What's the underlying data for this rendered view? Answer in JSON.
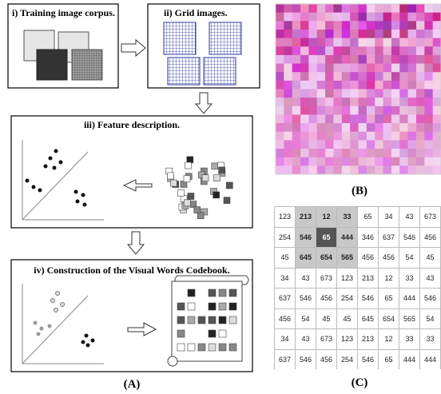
{
  "panels": [
    {
      "title": "i) Training image corpus."
    },
    {
      "title": "ii) Grid images."
    },
    {
      "title": "iii) Feature description."
    },
    {
      "title": "iv) Construction of the Visual Words Codebook."
    }
  ],
  "captions": [
    "(A)",
    "(B)",
    "(C)"
  ],
  "table": {
    "rows": [
      [
        123,
        213,
        12,
        33,
        65,
        34,
        43,
        673
      ],
      [
        254,
        546,
        65,
        444,
        346,
        637,
        546,
        456
      ],
      [
        45,
        645,
        654,
        565,
        456,
        456,
        54,
        45
      ],
      [
        34,
        43,
        673,
        123,
        213,
        12,
        33,
        43
      ],
      [
        637,
        546,
        456,
        254,
        546,
        65,
        444,
        546
      ],
      [
        456,
        54,
        45,
        45,
        645,
        654,
        565,
        54
      ],
      [
        34,
        43,
        673,
        123,
        213,
        12,
        33,
        33
      ],
      [
        637,
        546,
        456,
        254,
        546,
        65,
        444,
        444
      ]
    ]
  }
}
